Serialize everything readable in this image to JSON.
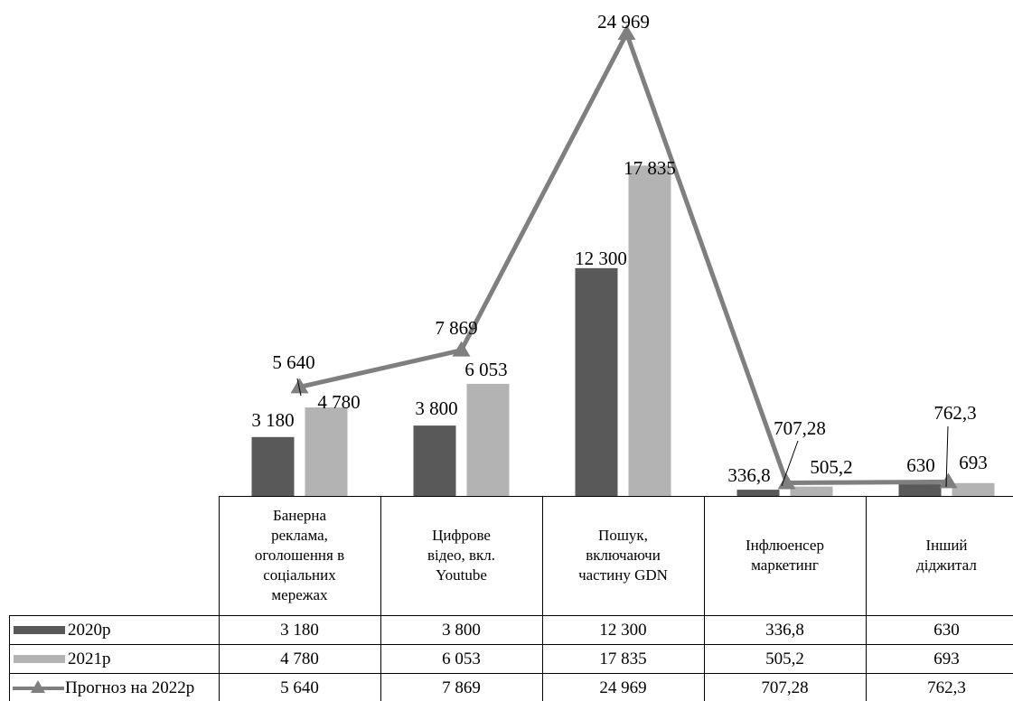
{
  "chart_data": {
    "type": "bar",
    "categories": [
      "Банерна реклама, оголошення в соціальних мережах",
      "Цифрове відео, вкл. Youtube",
      "Пошук, включаючи частину GDN",
      "Інфлюенсер маркетинг",
      "Інший діджитал"
    ],
    "category_lines": [
      [
        "Банерна",
        "реклама,",
        "оголошення в",
        "соціальних",
        "мережах"
      ],
      [
        "Цифрове",
        "відео, вкл.",
        "Youtube"
      ],
      [
        "Пошук,",
        "включаючи",
        "частину GDN"
      ],
      [
        "Інфлюенсер",
        "маркетинг"
      ],
      [
        "Інший",
        "діджитал"
      ]
    ],
    "series": [
      {
        "name": "2020р",
        "kind": "bar",
        "color": "#595959",
        "values": [
          3180,
          3800,
          12300,
          336.8,
          630
        ],
        "labels": [
          "3 180",
          "3 800",
          "12 300",
          "336,8",
          "630"
        ]
      },
      {
        "name": "2021р",
        "kind": "bar",
        "color": "#b3b3b3",
        "values": [
          4780,
          6053,
          17835,
          505.2,
          693
        ],
        "labels": [
          "4 780",
          "6 053",
          "17 835",
          "505,2",
          "693"
        ]
      },
      {
        "name": "Прогноз на 2022р",
        "kind": "line",
        "color": "#7f7f7f",
        "values": [
          5640,
          7869,
          24969,
          707.28,
          762.3
        ],
        "labels": [
          "5 640",
          "7 869",
          "24 969",
          "707,28",
          "762,3"
        ]
      }
    ],
    "ylim": [
      0,
      25000
    ],
    "data_table": true
  }
}
